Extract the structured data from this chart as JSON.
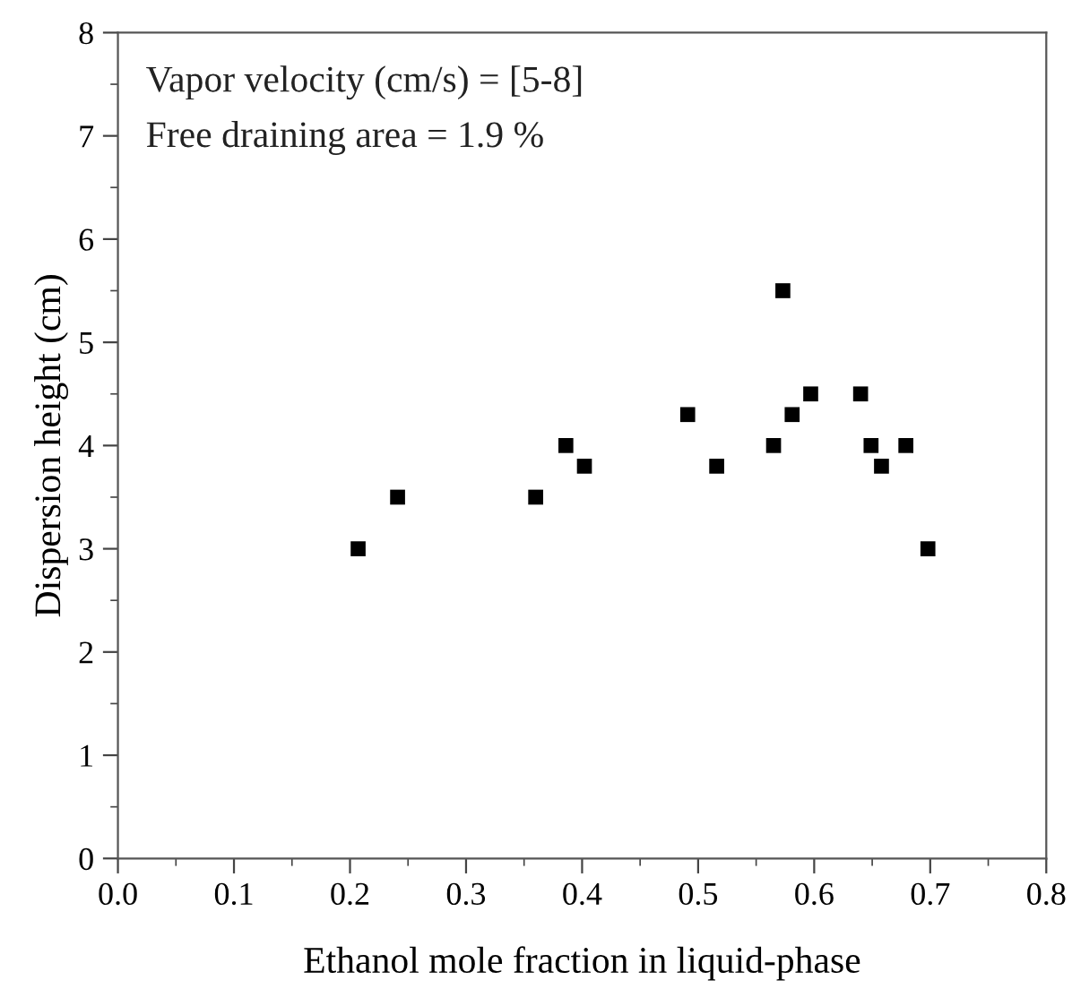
{
  "chart_data": {
    "type": "scatter",
    "xlabel": "Ethanol mole fraction in liquid-phase",
    "ylabel": "Dispersion height (cm)",
    "annotations": [
      "Vapor velocity (cm/s) = [5-8]",
      "Free draining area = 1.9 %"
    ],
    "x": [
      0.207,
      0.241,
      0.36,
      0.386,
      0.402,
      0.491,
      0.516,
      0.565,
      0.573,
      0.581,
      0.597,
      0.64,
      0.649,
      0.658,
      0.679,
      0.698
    ],
    "values": [
      3,
      3.5,
      3.5,
      4,
      3.8,
      4.3,
      3.8,
      4,
      5.5,
      4.3,
      4.5,
      4.5,
      4,
      3.8,
      4,
      3
    ],
    "color": "#000000",
    "marker": "square",
    "xlim": [
      0,
      0.8
    ],
    "xticks": [
      {
        "value": 0,
        "label": "0.0"
      },
      0.1,
      0.2,
      0.3,
      0.4,
      0.5,
      0.6,
      0.7,
      0.8
    ],
    "ylim": [
      0,
      8
    ],
    "yticks": [
      0,
      1,
      2,
      3,
      4,
      5,
      6,
      7,
      8
    ],
    "grid": false,
    "legend": false
  }
}
